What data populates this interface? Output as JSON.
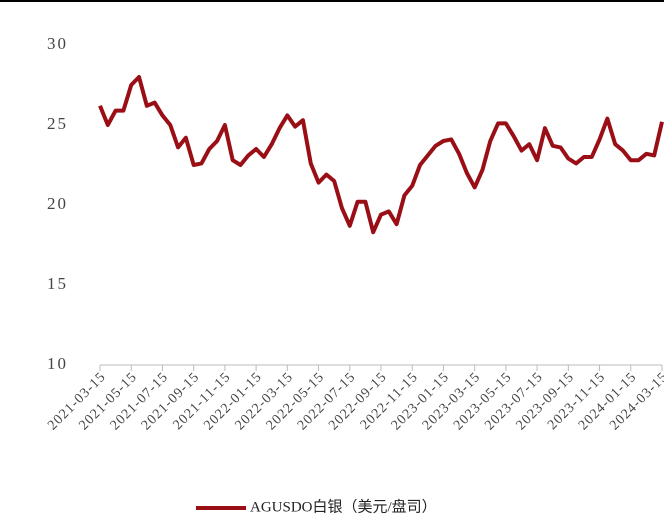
{
  "chart_data": {
    "type": "line",
    "categories": [
      "2021-03-15",
      null,
      null,
      null,
      "2021-05-15",
      null,
      null,
      null,
      "2021-07-15",
      null,
      null,
      null,
      "2021-09-15",
      null,
      null,
      null,
      "2021-11-15",
      null,
      null,
      null,
      "2022-01-15",
      null,
      null,
      null,
      "2022-03-15",
      null,
      null,
      null,
      "2022-05-15",
      null,
      null,
      null,
      "2022-07-15",
      null,
      null,
      null,
      "2022-09-15",
      null,
      null,
      null,
      "2022-11-15",
      null,
      null,
      null,
      "2023-01-15",
      null,
      null,
      null,
      "2023-03-15",
      null,
      null,
      null,
      "2023-05-15",
      null,
      null,
      null,
      "2023-07-15",
      null,
      null,
      null,
      "2023-09-15",
      null,
      null,
      null,
      "2023-11-15",
      null,
      null,
      null,
      "2024-01-15",
      null,
      null,
      null,
      "2024-03-15"
    ],
    "series": [
      {
        "name": "AGUSDO白银（美元/盘司）",
        "color": "#9a0f16",
        "values": [
          26.2,
          25.0,
          25.9,
          25.9,
          27.5,
          28.0,
          26.2,
          26.4,
          25.6,
          25.0,
          23.6,
          24.2,
          22.5,
          22.6,
          23.5,
          24.0,
          25.0,
          22.8,
          22.5,
          23.1,
          23.5,
          23.0,
          23.8,
          24.8,
          25.6,
          24.9,
          25.3,
          22.6,
          21.4,
          21.9,
          21.5,
          19.8,
          18.7,
          20.2,
          20.2,
          18.3,
          19.4,
          19.6,
          18.8,
          20.6,
          21.2,
          22.5,
          23.1,
          23.7,
          24.0,
          24.1,
          23.2,
          22.0,
          21.1,
          22.2,
          24.0,
          25.1,
          25.1,
          24.3,
          23.4,
          23.8,
          22.8,
          24.8,
          23.7,
          23.6,
          22.9,
          22.6,
          23.0,
          23.0,
          24.1,
          25.4,
          23.8,
          23.4,
          22.8,
          22.8,
          23.2,
          23.1,
          25.2
        ]
      }
    ],
    "ylim": [
      10,
      30
    ],
    "yticks": [
      10,
      15,
      20,
      25,
      30
    ],
    "grid": false,
    "legend": "bottom"
  }
}
